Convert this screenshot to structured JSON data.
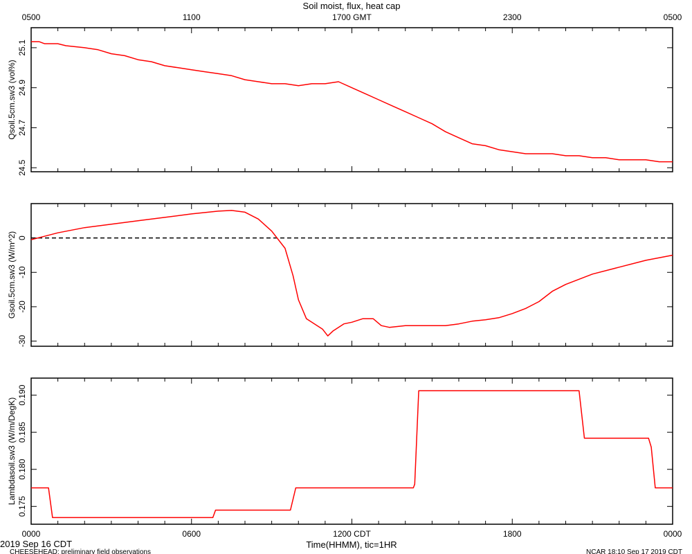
{
  "chart_data": {
    "type": "line",
    "title": "Soil moist, flux, heat cap",
    "xlabel": "Time(HHMM), tic=1HR",
    "x_unit": "hours since 0000 CDT",
    "xlim": [
      0,
      24
    ],
    "top_axis_ticks": [
      {
        "x": 0,
        "label": "0500"
      },
      {
        "x": 6,
        "label": "1100"
      },
      {
        "x": 12,
        "label": "1700 GMT"
      },
      {
        "x": 18,
        "label": "2300"
      },
      {
        "x": 24,
        "label": "0500"
      }
    ],
    "bottom_axis_ticks": [
      {
        "x": 0,
        "label": "0000"
      },
      {
        "x": 6,
        "label": "0600"
      },
      {
        "x": 12,
        "label": "1200 CDT"
      },
      {
        "x": 18,
        "label": "1800"
      },
      {
        "x": 24,
        "label": "0000"
      }
    ],
    "footer": {
      "date": "2019 Sep 16 CDT",
      "project": "CHEESEHEAD: preliminary field observations",
      "stamp": "NCAR 18:10 Sep 17 2019 CDT"
    },
    "line_color": "#ff0000",
    "panels": [
      {
        "ylabel": "Qsoil.5cm.sw3 (vol%)",
        "ylim": [
          24.48,
          25.2
        ],
        "yticks": [
          {
            "value": 24.5,
            "label": "24.5"
          },
          {
            "value": 24.7,
            "label": "24.7"
          },
          {
            "value": 24.9,
            "label": "24.9"
          },
          {
            "value": 25.1,
            "label": "25.1"
          }
        ],
        "zero_line": false,
        "series": [
          {
            "x": [
              0,
              0.3,
              0.5,
              1,
              1.3,
              2,
              2.5,
              3,
              3.5,
              4,
              4.5,
              5,
              5.5,
              6,
              6.5,
              7,
              7.5,
              8,
              8.5,
              9,
              9.5,
              10,
              10.5,
              11,
              11.5,
              12,
              12.5,
              13,
              13.5,
              14,
              14.5,
              15,
              15.5,
              16,
              16.5,
              17,
              17.5,
              18,
              18.5,
              19,
              19.5,
              20,
              20.5,
              21,
              21.5,
              22,
              22.5,
              23,
              23.5,
              24
            ],
            "y": [
              25.13,
              25.13,
              25.12,
              25.12,
              25.11,
              25.1,
              25.09,
              25.07,
              25.06,
              25.04,
              25.03,
              25.01,
              25.0,
              24.99,
              24.98,
              24.97,
              24.96,
              24.94,
              24.93,
              24.92,
              24.92,
              24.91,
              24.92,
              24.92,
              24.93,
              24.9,
              24.87,
              24.84,
              24.81,
              24.78,
              24.75,
              24.72,
              24.68,
              24.65,
              24.62,
              24.61,
              24.59,
              24.58,
              24.57,
              24.57,
              24.57,
              24.56,
              24.56,
              24.55,
              24.55,
              24.54,
              24.54,
              24.54,
              24.53,
              24.53
            ]
          }
        ]
      },
      {
        "ylabel": "Gsoil.5cm.sw3 (W/m^2)",
        "ylim": [
          -31.5,
          10
        ],
        "yticks": [
          {
            "value": -30,
            "label": "-30"
          },
          {
            "value": -20,
            "label": "-20"
          },
          {
            "value": -10,
            "label": "-10"
          },
          {
            "value": 0,
            "label": "0"
          }
        ],
        "zero_line": true,
        "series": [
          {
            "x": [
              0,
              0.5,
              1,
              2,
              3,
              4,
              5,
              6,
              7,
              7.5,
              8,
              8.5,
              9,
              9.5,
              9.8,
              10,
              10.3,
              10.6,
              10.9,
              11.1,
              11.3,
              11.5,
              11.7,
              12,
              12.4,
              12.8,
              13.1,
              13.4,
              14,
              14.5,
              15,
              15.5,
              16,
              16.5,
              17,
              17.5,
              18,
              18.5,
              19,
              19.5,
              20,
              21,
              22,
              23,
              24
            ],
            "y": [
              -0.5,
              0.5,
              1.5,
              3,
              4,
              5,
              6,
              7,
              7.8,
              8,
              7.5,
              5.5,
              2,
              -3,
              -11,
              -18,
              -23.5,
              -25,
              -26.5,
              -28.5,
              -27,
              -26,
              -25,
              -24.5,
              -23.5,
              -23.5,
              -25.5,
              -26,
              -25.5,
              -25.5,
              -25.5,
              -25.5,
              -25,
              -24.2,
              -23.8,
              -23.2,
              -22,
              -20.5,
              -18.5,
              -15.5,
              -13.5,
              -10.5,
              -8.5,
              -6.5,
              -5
            ]
          }
        ]
      },
      {
        "ylabel": "Lambdasoil.sw3 (W/m/DegK)",
        "ylim": [
          0.1726,
          0.1923
        ],
        "yticks": [
          {
            "value": 0.175,
            "label": "0.175"
          },
          {
            "value": 0.18,
            "label": "0.180"
          },
          {
            "value": 0.185,
            "label": "0.185"
          },
          {
            "value": 0.19,
            "label": "0.190"
          }
        ],
        "zero_line": false,
        "series": [
          {
            "x": [
              0,
              0.65,
              0.8,
              6.8,
              6.9,
              9.7,
              9.9,
              14.3,
              14.35,
              14.5,
              20.5,
              20.7,
              23.1,
              23.2,
              23.35,
              24
            ],
            "y": [
              0.1775,
              0.1775,
              0.1735,
              0.1735,
              0.1745,
              0.1745,
              0.1775,
              0.1775,
              0.178,
              0.1906,
              0.1906,
              0.1842,
              0.1842,
              0.183,
              0.1775,
              0.1775
            ]
          }
        ]
      }
    ]
  }
}
